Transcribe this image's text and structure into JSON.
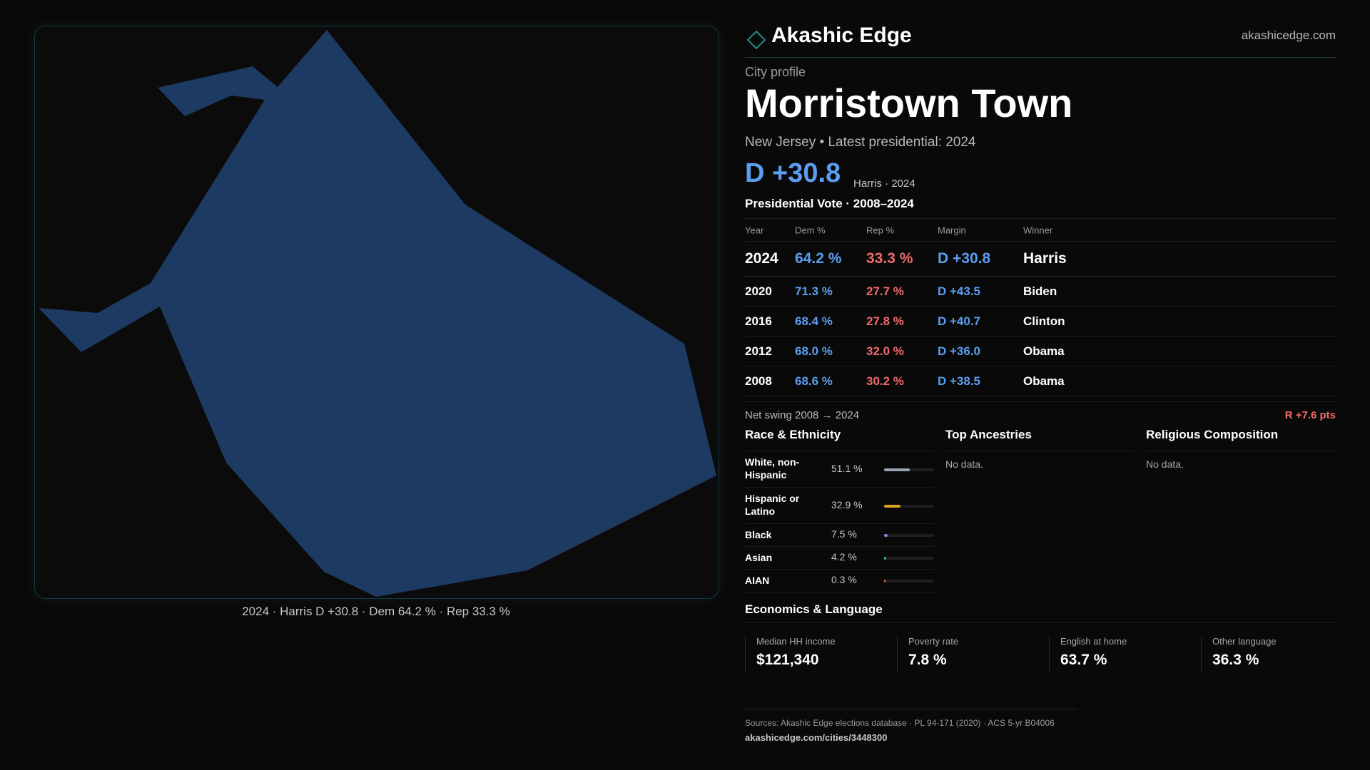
{
  "brand": {
    "name": "Akashic Edge",
    "url": "akashicedge.com",
    "accent": "#1f8a8c"
  },
  "map": {
    "fill": "#1d3a63",
    "caption": "2024 · Harris D +30.8 · Dem 64.2 % · Rep 33.3 %"
  },
  "profile": {
    "eyebrow": "City profile",
    "title": "Morristown Town",
    "subline": "New Jersey • Latest presidential: 2024",
    "headline_margin": "D +30.8",
    "headline_note": "Harris · 2024"
  },
  "vote": {
    "section_title": "Presidential Vote · 2008–2024",
    "headers": {
      "year": "Year",
      "dem": "Dem %",
      "rep": "Rep %",
      "margin": "Margin",
      "winner": "Winner"
    },
    "rows": [
      {
        "year": "2024",
        "dem": "64.2 %",
        "rep": "33.3 %",
        "margin": "D +30.8",
        "winner": "Harris"
      },
      {
        "year": "2020",
        "dem": "71.3 %",
        "rep": "27.7 %",
        "margin": "D +43.5",
        "winner": "Biden"
      },
      {
        "year": "2016",
        "dem": "68.4 %",
        "rep": "27.8 %",
        "margin": "D +40.7",
        "winner": "Clinton"
      },
      {
        "year": "2012",
        "dem": "68.0 %",
        "rep": "32.0 %",
        "margin": "D +36.0",
        "winner": "Obama"
      },
      {
        "year": "2008",
        "dem": "68.6 %",
        "rep": "30.2 %",
        "margin": "D +38.5",
        "winner": "Obama"
      }
    ],
    "swing_label": "Net swing 2008 → 2024",
    "swing_value": "R +7.6 pts"
  },
  "race": {
    "title": "Race & Ethnicity",
    "items": [
      {
        "label": "White, non-Hispanic",
        "value": "51.1 %",
        "fraction": 0.511,
        "color": "#9aa3b5"
      },
      {
        "label": "Hispanic or Latino",
        "value": "32.9 %",
        "fraction": 0.329,
        "color": "#e0a020"
      },
      {
        "label": "Black",
        "value": "7.5 %",
        "fraction": 0.075,
        "color": "#8a7cf0"
      },
      {
        "label": "Asian",
        "value": "4.2 %",
        "fraction": 0.042,
        "color": "#2bb8a0"
      },
      {
        "label": "AIAN",
        "value": "0.3 %",
        "fraction": 0.003,
        "color": "#e07030"
      }
    ]
  },
  "ancestries": {
    "title": "Top Ancestries",
    "empty": "No data."
  },
  "religion": {
    "title": "Religious Composition",
    "empty": "No data."
  },
  "economics": {
    "title": "Economics & Language",
    "items": [
      {
        "label": "Median HH income",
        "value": "$121,340"
      },
      {
        "label": "Poverty rate",
        "value": "7.8 %"
      },
      {
        "label": "English at home",
        "value": "63.7 %"
      },
      {
        "label": "Other language",
        "value": "36.3 %"
      }
    ]
  },
  "sources": {
    "text": "Sources: Akashic Edge elections database · PL 94-171 (2020) · ACS 5-yr B04006",
    "link": "akashicedge.com/cities/3448300"
  }
}
